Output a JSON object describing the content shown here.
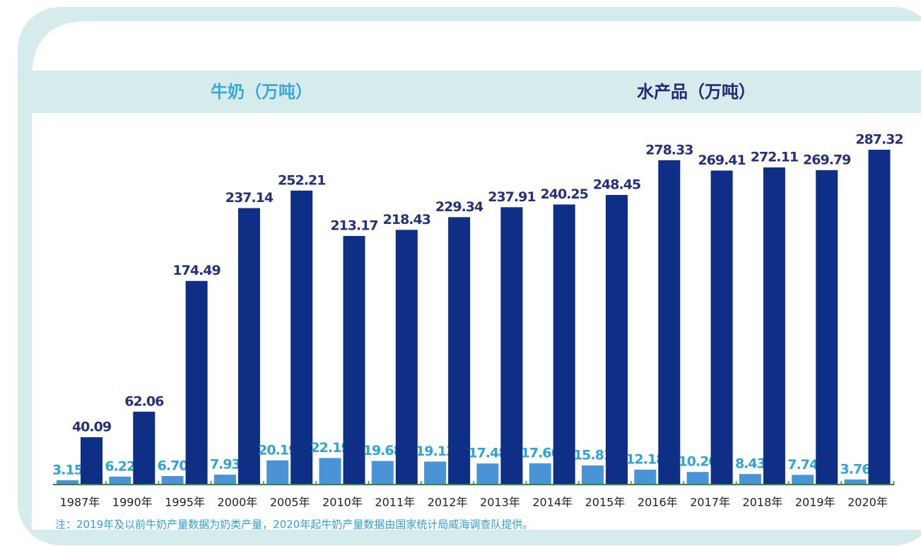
{
  "chart_data": {
    "type": "bar",
    "categories": [
      "1987年",
      "1990年",
      "1995年",
      "2000年",
      "2005年",
      "2010年",
      "2011年",
      "2012年",
      "2013年",
      "2014年",
      "2015年",
      "2016年",
      "2017年",
      "2018年",
      "2019年",
      "2020年"
    ],
    "series": [
      {
        "name": "牛奶（万吨）",
        "color": "#4a93d6",
        "values": [
          3.15,
          6.22,
          6.7,
          7.93,
          20.19,
          22.19,
          19.68,
          19.13,
          17.48,
          17.66,
          15.81,
          12.18,
          10.2,
          8.43,
          7.74,
          3.76
        ],
        "value_labels": [
          "3.15",
          "6.22",
          "6.70",
          "7.93",
          "20.19",
          "22.19",
          "19.68",
          "19.13",
          "17.48",
          "17.66",
          "15.81",
          "12.18",
          "10.20",
          "8.43",
          "7.74",
          "3.76"
        ]
      },
      {
        "name": "水产品（万吨）",
        "color": "#0f2f86",
        "values": [
          40.09,
          62.06,
          174.49,
          237.14,
          252.21,
          213.17,
          218.43,
          229.34,
          237.91,
          240.25,
          248.45,
          278.33,
          269.41,
          272.11,
          269.79,
          287.32
        ],
        "value_labels": [
          "40.09",
          "62.06",
          "174.49",
          "237.14",
          "252.21",
          "213.17",
          "218.43",
          "229.34",
          "237.91",
          "240.25",
          "248.45",
          "278.33",
          "269.41",
          "272.11",
          "269.79",
          "287.32"
        ]
      }
    ],
    "note": "注：2019年及以前牛奶产量数据为奶类产量，2020年起牛奶产量数据由国家统计局威海调查队提供。"
  }
}
